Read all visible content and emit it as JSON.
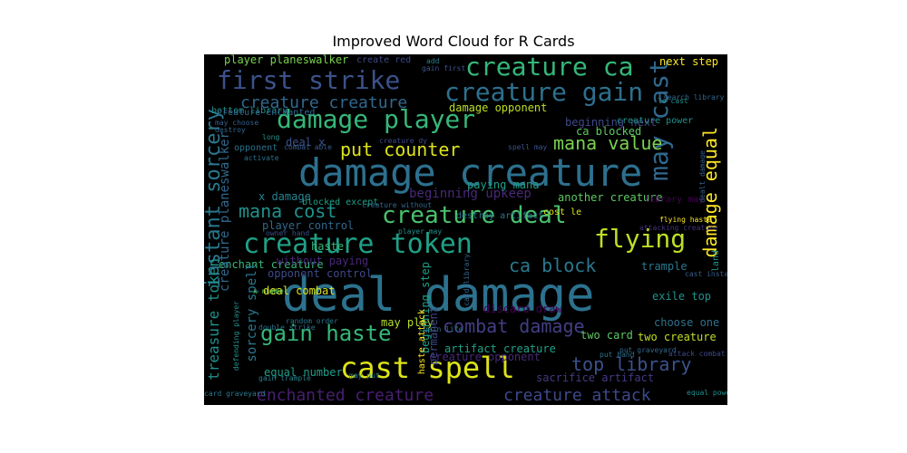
{
  "title": "Improved Word Cloud for R Cards",
  "colors": {
    "background": "#000000",
    "page": "#ffffff"
  },
  "words": [
    {
      "text": "deal damage",
      "color": "#2c728e",
      "rotated": false
    },
    {
      "text": "damage creature",
      "color": "#2d708e",
      "rotated": false
    },
    {
      "text": "cast spell",
      "color": "#dde318",
      "rotated": false
    },
    {
      "text": "creature token",
      "color": "#1fa187",
      "rotated": false
    },
    {
      "text": "damage player",
      "color": "#35b779",
      "rotated": false
    },
    {
      "text": "creature ca",
      "color": "#35b779",
      "rotated": false
    },
    {
      "text": "first strike",
      "color": "#3b528b",
      "rotated": false
    },
    {
      "text": "creature gain",
      "color": "#2d708e",
      "rotated": false
    },
    {
      "text": "creature deal",
      "color": "#4ac16d",
      "rotated": false
    },
    {
      "text": "gain haste",
      "color": "#35b779",
      "rotated": false
    },
    {
      "text": "flying",
      "color": "#bddf26",
      "rotated": false
    },
    {
      "text": "may cast",
      "color": "#31688e",
      "rotated": true
    },
    {
      "text": "instant sorcery",
      "color": "#2a788e",
      "rotated": true
    },
    {
      "text": "put counter",
      "color": "#dde318",
      "rotated": false
    },
    {
      "text": "mana value",
      "color": "#7ad151",
      "rotated": false
    },
    {
      "text": "mana cost",
      "color": "#21918c",
      "rotated": false
    },
    {
      "text": "damage equal",
      "color": "#fde725",
      "rotated": true
    },
    {
      "text": "combat damage",
      "color": "#433e85",
      "rotated": false
    },
    {
      "text": "top library",
      "color": "#3b528b",
      "rotated": false
    },
    {
      "text": "ca block",
      "color": "#2a788e",
      "rotated": false
    },
    {
      "text": "creature creature",
      "color": "#31688e",
      "rotated": false
    },
    {
      "text": "enchanted creature",
      "color": "#481f70",
      "rotated": false
    },
    {
      "text": "creature attack",
      "color": "#3e4989",
      "rotated": false
    },
    {
      "text": "beginning upkeep",
      "color": "#482878",
      "rotated": false
    },
    {
      "text": "player planeswalker",
      "color": "#7ad151",
      "rotated": false
    },
    {
      "text": "next step",
      "color": "#fde725",
      "rotated": false
    },
    {
      "text": "damage opponent",
      "color": "#bddf26",
      "rotated": false
    },
    {
      "text": "beginning next",
      "color": "#3e4989",
      "rotated": false
    },
    {
      "text": "ca blocked",
      "color": "#5ec962",
      "rotated": false
    },
    {
      "text": "deal x",
      "color": "#3b528b",
      "rotated": false
    },
    {
      "text": "another creature",
      "color": "#5ec962",
      "rotated": false
    },
    {
      "text": "x damage",
      "color": "#26828e",
      "rotated": false
    },
    {
      "text": "player control",
      "color": "#31688e",
      "rotated": false
    },
    {
      "text": "haste",
      "color": "#35b779",
      "rotated": false
    },
    {
      "text": "enchant creature",
      "color": "#35b779",
      "rotated": false
    },
    {
      "text": "deal combat",
      "color": "#dde318",
      "rotated": false
    },
    {
      "text": "equal number",
      "color": "#1f9e89",
      "rotated": false
    },
    {
      "text": "artifact creature",
      "color": "#1fa187",
      "rotated": false
    },
    {
      "text": "creature opponent",
      "color": "#482878",
      "rotated": false
    },
    {
      "text": "trample",
      "color": "#2a788e",
      "rotated": false
    },
    {
      "text": "exile top",
      "color": "#21918c",
      "rotated": false
    },
    {
      "text": "choose one",
      "color": "#2c728e",
      "rotated": false
    },
    {
      "text": "two card",
      "color": "#5ec962",
      "rotated": false
    },
    {
      "text": "two creature",
      "color": "#bddf26",
      "rotated": false
    },
    {
      "text": "may play",
      "color": "#b5de2b",
      "rotated": false
    },
    {
      "text": "land",
      "color": "#21918c",
      "rotated": true
    },
    {
      "text": "discard draw",
      "color": "#440154",
      "rotated": false
    },
    {
      "text": "sacrifice artifact",
      "color": "#443a83",
      "rotated": false
    },
    {
      "text": "opponent control",
      "color": "#3e4989",
      "rotated": false
    },
    {
      "text": "without paying",
      "color": "#482878",
      "rotated": false
    },
    {
      "text": "paying mana",
      "color": "#1f9e89",
      "rotated": false
    },
    {
      "text": "destroy artifact",
      "color": "#2a788e",
      "rotated": false
    },
    {
      "text": "library may",
      "color": "#440154",
      "rotated": false
    },
    {
      "text": "cost le",
      "color": "#dde318",
      "rotated": false
    },
    {
      "text": "opponent",
      "color": "#2c728e",
      "rotated": false
    },
    {
      "text": "bottom library",
      "color": "#21918c",
      "rotated": false
    },
    {
      "text": "creature enchanted",
      "color": "#31688e",
      "rotated": false
    },
    {
      "text": "create red",
      "color": "#3e4989",
      "rotated": false
    },
    {
      "text": "creature power",
      "color": "#21918c",
      "rotated": false
    },
    {
      "text": "blocked except",
      "color": "#1fa187",
      "rotated": false
    },
    {
      "text": "treasure token",
      "color": "#21918c",
      "rotated": true
    },
    {
      "text": "creature planeswalker",
      "color": "#31688e",
      "rotated": true
    },
    {
      "text": "sorcery spell",
      "color": "#2a788e",
      "rotated": true
    },
    {
      "text": "beginning step",
      "color": "#1f9e89",
      "rotated": true
    },
    {
      "text": "permanent",
      "color": "#3e4989",
      "rotated": true
    },
    {
      "text": "combat able",
      "color": "#355f8d",
      "rotated": false
    },
    {
      "text": "spell may",
      "color": "#3b528b",
      "rotated": false
    },
    {
      "text": "creature dy",
      "color": "#3e4989",
      "rotated": false
    },
    {
      "text": "may choose",
      "color": "#355f8d",
      "rotated": false
    },
    {
      "text": "destroy",
      "color": "#31688e",
      "rotated": false
    },
    {
      "text": "activate",
      "color": "#2c728e",
      "rotated": false
    },
    {
      "text": "long",
      "color": "#21918c",
      "rotated": false
    },
    {
      "text": "flying haste",
      "color": "#fde725",
      "rotated": false
    },
    {
      "text": "search library",
      "color": "#31688e",
      "rotated": false
    },
    {
      "text": "le cast",
      "color": "#21918c",
      "rotated": false
    },
    {
      "text": "gain first",
      "color": "#3b528b",
      "rotated": false
    },
    {
      "text": "add",
      "color": "#26828e",
      "rotated": false
    },
    {
      "text": "attacking creature",
      "color": "#46337e",
      "rotated": false
    },
    {
      "text": "owner hand",
      "color": "#3b528b",
      "rotated": false
    },
    {
      "text": "player may",
      "color": "#21918c",
      "rotated": false
    },
    {
      "text": "creature without",
      "color": "#31688e",
      "rotated": false
    },
    {
      "text": "x number",
      "color": "#5ec962",
      "rotated": false
    },
    {
      "text": "double strike",
      "color": "#2c728e",
      "rotated": false
    },
    {
      "text": "random order",
      "color": "#2a788e",
      "rotated": false
    },
    {
      "text": "gain life",
      "color": "#2c728e",
      "rotated": false
    },
    {
      "text": "haste attack",
      "color": "#fde725",
      "rotated": true
    },
    {
      "text": "put graveyard",
      "color": "#31688e",
      "rotated": false
    },
    {
      "text": "put hand",
      "color": "#2c728e",
      "rotated": false
    },
    {
      "text": "attack combat",
      "color": "#3e4989",
      "rotated": false
    },
    {
      "text": "cast instant",
      "color": "#355f8d",
      "rotated": false
    },
    {
      "text": "card graveyard",
      "color": "#2a788e",
      "rotated": false
    },
    {
      "text": "equal power",
      "color": "#21918c",
      "rotated": false
    },
    {
      "text": "may put",
      "color": "#26828e",
      "rotated": false
    },
    {
      "text": "gain trample",
      "color": "#26828e",
      "rotated": false
    },
    {
      "text": "card library",
      "color": "#31688e",
      "rotated": true
    },
    {
      "text": "defending player",
      "color": "#21918c",
      "rotated": true
    },
    {
      "text": "dealt damage",
      "color": "#355f8d",
      "rotated": true
    }
  ]
}
